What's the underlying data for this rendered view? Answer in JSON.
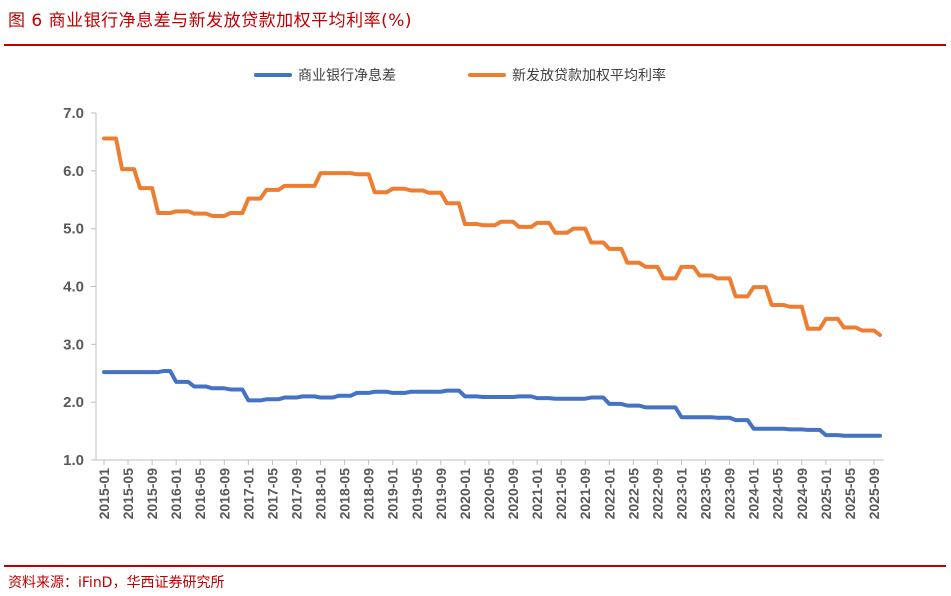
{
  "figure": {
    "title": "图 6  商业银行净息差与新发放贷款加权平均利率(%)",
    "source": "资料来源：iFinD，华西证券研究所"
  },
  "colors": {
    "accent": "#c00000",
    "nim": "#4472c4",
    "rate": "#ed7d31"
  },
  "chart_data": {
    "type": "line",
    "title": "",
    "xlabel": "",
    "ylabel": "",
    "ylim": [
      1.0,
      7.0
    ],
    "yticks": [
      "1.0",
      "2.0",
      "3.0",
      "4.0",
      "5.0",
      "6.0",
      "7.0"
    ],
    "grid": false,
    "legend": "top",
    "x_tick_labels": [
      "2015-01",
      "2015-05",
      "2015-09",
      "2016-01",
      "2016-05",
      "2016-09",
      "2017-01",
      "2017-05",
      "2017-09",
      "2018-01",
      "2018-05",
      "2018-09",
      "2019-01",
      "2019-05",
      "2019-09",
      "2020-01",
      "2020-05",
      "2020-09",
      "2021-01",
      "2021-05",
      "2021-09",
      "2022-01",
      "2022-05",
      "2022-09",
      "2023-01",
      "2023-05",
      "2023-09",
      "2024-01",
      "2024-05",
      "2024-09",
      "2025-01",
      "2025-05",
      "2025-09"
    ],
    "x_months": [
      "2015-01",
      "2015-02",
      "2015-03",
      "2015-04",
      "2015-05",
      "2015-06",
      "2015-07",
      "2015-08",
      "2015-09",
      "2015-10",
      "2015-11",
      "2015-12",
      "2016-01",
      "2016-02",
      "2016-03",
      "2016-04",
      "2016-05",
      "2016-06",
      "2016-07",
      "2016-08",
      "2016-09",
      "2016-10",
      "2016-11",
      "2016-12",
      "2017-01",
      "2017-02",
      "2017-03",
      "2017-04",
      "2017-05",
      "2017-06",
      "2017-07",
      "2017-08",
      "2017-09",
      "2017-10",
      "2017-11",
      "2017-12",
      "2018-01",
      "2018-02",
      "2018-03",
      "2018-04",
      "2018-05",
      "2018-06",
      "2018-07",
      "2018-08",
      "2018-09",
      "2018-10",
      "2018-11",
      "2018-12",
      "2019-01",
      "2019-02",
      "2019-03",
      "2019-04",
      "2019-05",
      "2019-06",
      "2019-07",
      "2019-08",
      "2019-09",
      "2019-10",
      "2019-11",
      "2019-12",
      "2020-01",
      "2020-02",
      "2020-03",
      "2020-04",
      "2020-05",
      "2020-06",
      "2020-07",
      "2020-08",
      "2020-09",
      "2020-10",
      "2020-11",
      "2020-12",
      "2021-01",
      "2021-02",
      "2021-03",
      "2021-04",
      "2021-05",
      "2021-06",
      "2021-07",
      "2021-08",
      "2021-09",
      "2021-10",
      "2021-11",
      "2021-12",
      "2022-01",
      "2022-02",
      "2022-03",
      "2022-04",
      "2022-05",
      "2022-06",
      "2022-07",
      "2022-08",
      "2022-09",
      "2022-10",
      "2022-11",
      "2022-12",
      "2023-01",
      "2023-02",
      "2023-03",
      "2023-04",
      "2023-05",
      "2023-06",
      "2023-07",
      "2023-08",
      "2023-09",
      "2023-10",
      "2023-11",
      "2023-12",
      "2024-01",
      "2024-02",
      "2024-03",
      "2024-04",
      "2024-05",
      "2024-06",
      "2024-07",
      "2024-08",
      "2024-09",
      "2024-10",
      "2024-11",
      "2024-12",
      "2025-01",
      "2025-02",
      "2025-03",
      "2025-04",
      "2025-05",
      "2025-06",
      "2025-07",
      "2025-08",
      "2025-09",
      "2025-10"
    ],
    "series": [
      {
        "name": "商业银行净息差",
        "color": "#4472c4",
        "values": [
          2.52,
          2.52,
          2.52,
          2.52,
          2.52,
          2.52,
          2.52,
          2.52,
          2.52,
          2.52,
          2.54,
          2.54,
          2.35,
          2.35,
          2.35,
          2.27,
          2.27,
          2.27,
          2.24,
          2.24,
          2.24,
          2.22,
          2.22,
          2.22,
          2.03,
          2.03,
          2.03,
          2.05,
          2.05,
          2.05,
          2.08,
          2.08,
          2.08,
          2.1,
          2.1,
          2.1,
          2.08,
          2.08,
          2.08,
          2.11,
          2.11,
          2.11,
          2.16,
          2.16,
          2.16,
          2.18,
          2.18,
          2.18,
          2.16,
          2.16,
          2.16,
          2.18,
          2.18,
          2.18,
          2.18,
          2.18,
          2.18,
          2.2,
          2.2,
          2.2,
          2.1,
          2.1,
          2.1,
          2.09,
          2.09,
          2.09,
          2.09,
          2.09,
          2.09,
          2.1,
          2.1,
          2.1,
          2.07,
          2.07,
          2.07,
          2.06,
          2.06,
          2.06,
          2.06,
          2.06,
          2.06,
          2.08,
          2.08,
          2.08,
          1.97,
          1.97,
          1.97,
          1.94,
          1.94,
          1.94,
          1.91,
          1.91,
          1.91,
          1.91,
          1.91,
          1.91,
          1.74,
          1.74,
          1.74,
          1.74,
          1.74,
          1.74,
          1.73,
          1.73,
          1.73,
          1.69,
          1.69,
          1.69,
          1.54,
          1.54,
          1.54,
          1.54,
          1.54,
          1.54,
          1.53,
          1.53,
          1.53,
          1.52,
          1.52,
          1.52,
          1.43,
          1.43,
          1.43,
          1.42,
          1.42,
          1.42,
          1.42,
          1.42,
          1.42,
          1.42
        ]
      },
      {
        "name": "新发放贷款加权平均利率",
        "color": "#ed7d31",
        "values": [
          6.56,
          6.56,
          6.56,
          6.03,
          6.03,
          6.03,
          5.7,
          5.7,
          5.7,
          5.27,
          5.27,
          5.27,
          5.3,
          5.3,
          5.3,
          5.26,
          5.26,
          5.26,
          5.22,
          5.22,
          5.22,
          5.27,
          5.27,
          5.27,
          5.52,
          5.52,
          5.52,
          5.67,
          5.67,
          5.67,
          5.74,
          5.74,
          5.74,
          5.74,
          5.74,
          5.74,
          5.96,
          5.96,
          5.96,
          5.96,
          5.96,
          5.96,
          5.94,
          5.94,
          5.94,
          5.63,
          5.63,
          5.63,
          5.69,
          5.69,
          5.69,
          5.66,
          5.66,
          5.66,
          5.62,
          5.62,
          5.62,
          5.44,
          5.44,
          5.44,
          5.08,
          5.08,
          5.08,
          5.06,
          5.06,
          5.06,
          5.12,
          5.12,
          5.12,
          5.03,
          5.03,
          5.03,
          5.1,
          5.1,
          5.1,
          4.93,
          4.93,
          4.93,
          5.0,
          5.0,
          5.0,
          4.76,
          4.76,
          4.76,
          4.65,
          4.65,
          4.65,
          4.41,
          4.41,
          4.41,
          4.34,
          4.34,
          4.34,
          4.14,
          4.14,
          4.14,
          4.34,
          4.34,
          4.34,
          4.19,
          4.19,
          4.19,
          4.14,
          4.14,
          4.14,
          3.83,
          3.83,
          3.83,
          3.99,
          3.99,
          3.99,
          3.68,
          3.68,
          3.68,
          3.65,
          3.65,
          3.65,
          3.27,
          3.27,
          3.27,
          3.44,
          3.44,
          3.44,
          3.29,
          3.29,
          3.29,
          3.24,
          3.24,
          3.24,
          3.16
        ]
      }
    ]
  }
}
